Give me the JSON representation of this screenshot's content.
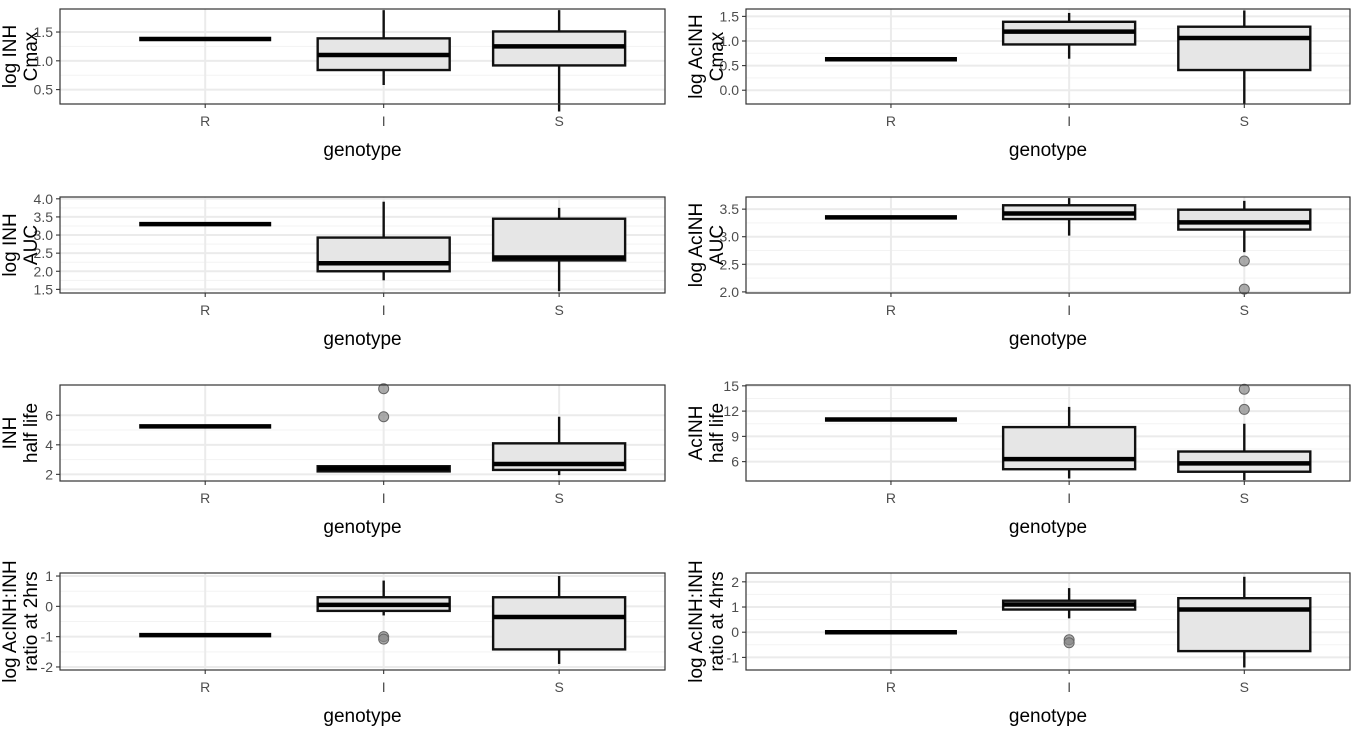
{
  "colors": {
    "box_fill": "#e6e6e6",
    "outline": "#111111",
    "outlier": "#888888",
    "grid": "#ebebeb"
  },
  "chart_data": [
    {
      "type": "box",
      "xlabel": "genotype",
      "ylabel_lines": [
        "log INH",
        "Cmax"
      ],
      "categories": [
        "R",
        "I",
        "S"
      ],
      "ylim": [
        0.25,
        1.9
      ],
      "yticks": [
        0.5,
        1.0,
        1.5
      ],
      "ytick_labels": [
        "0.5",
        "1.0",
        "1.5"
      ],
      "boxes": [
        {
          "category": "R",
          "min": 1.38,
          "q1": 1.38,
          "median": 1.38,
          "q3": 1.38,
          "max": 1.38,
          "outliers": []
        },
        {
          "category": "I",
          "min": 0.58,
          "q1": 0.84,
          "median": 1.1,
          "q3": 1.39,
          "max": 1.88,
          "outliers": []
        },
        {
          "category": "S",
          "min": 0.12,
          "q1": 0.92,
          "median": 1.25,
          "q3": 1.51,
          "max": 1.88,
          "outliers": []
        }
      ]
    },
    {
      "type": "box",
      "xlabel": "genotype",
      "ylabel_lines": [
        "log AcINH",
        "Cmax"
      ],
      "categories": [
        "R",
        "I",
        "S"
      ],
      "ylim": [
        -0.28,
        1.65
      ],
      "yticks": [
        0.0,
        0.5,
        1.0,
        1.5
      ],
      "ytick_labels": [
        "0.0",
        "0.5",
        "1.0",
        "1.5"
      ],
      "boxes": [
        {
          "category": "R",
          "min": 0.63,
          "q1": 0.63,
          "median": 0.63,
          "q3": 0.63,
          "max": 0.63,
          "outliers": []
        },
        {
          "category": "I",
          "min": 0.64,
          "q1": 0.93,
          "median": 1.19,
          "q3": 1.39,
          "max": 1.57,
          "outliers": []
        },
        {
          "category": "S",
          "min": -0.28,
          "q1": 0.41,
          "median": 1.06,
          "q3": 1.29,
          "max": 1.62,
          "outliers": []
        }
      ]
    },
    {
      "type": "box",
      "xlabel": "genotype",
      "ylabel_lines": [
        "log INH",
        "AUC"
      ],
      "categories": [
        "R",
        "I",
        "S"
      ],
      "ylim": [
        1.4,
        4.05
      ],
      "yticks": [
        1.5,
        2.0,
        2.5,
        3.0,
        3.5,
        4.0
      ],
      "ytick_labels": [
        "1.5",
        "2.0",
        "2.5",
        "3.0",
        "3.5",
        "4.0"
      ],
      "boxes": [
        {
          "category": "R",
          "min": 3.3,
          "q1": 3.3,
          "median": 3.3,
          "q3": 3.3,
          "max": 3.3,
          "outliers": []
        },
        {
          "category": "I",
          "min": 1.75,
          "q1": 2.0,
          "median": 2.22,
          "q3": 2.93,
          "max": 3.92,
          "outliers": []
        },
        {
          "category": "S",
          "min": 1.45,
          "q1": 2.3,
          "median": 2.38,
          "q3": 3.45,
          "max": 3.75,
          "outliers": []
        }
      ]
    },
    {
      "type": "box",
      "xlabel": "genotype",
      "ylabel_lines": [
        "log AcINH",
        "AUC"
      ],
      "categories": [
        "R",
        "I",
        "S"
      ],
      "ylim": [
        1.98,
        3.72
      ],
      "yticks": [
        2.0,
        2.5,
        3.0,
        3.5
      ],
      "ytick_labels": [
        "2.0",
        "2.5",
        "3.0",
        "3.5"
      ],
      "boxes": [
        {
          "category": "R",
          "min": 3.35,
          "q1": 3.35,
          "median": 3.35,
          "q3": 3.35,
          "max": 3.35,
          "outliers": []
        },
        {
          "category": "I",
          "min": 3.02,
          "q1": 3.32,
          "median": 3.42,
          "q3": 3.57,
          "max": 3.7,
          "outliers": []
        },
        {
          "category": "S",
          "min": 2.72,
          "q1": 3.13,
          "median": 3.26,
          "q3": 3.49,
          "max": 3.65,
          "outliers": [
            2.56,
            2.05
          ]
        }
      ]
    },
    {
      "type": "box",
      "xlabel": "genotype",
      "ylabel_lines": [
        "INH",
        "half life"
      ],
      "categories": [
        "R",
        "I",
        "S"
      ],
      "ylim": [
        1.55,
        8.05
      ],
      "yticks": [
        2,
        4,
        6
      ],
      "ytick_labels": [
        "2",
        "4",
        "6"
      ],
      "boxes": [
        {
          "category": "R",
          "min": 5.25,
          "q1": 5.25,
          "median": 5.25,
          "q3": 5.25,
          "max": 5.25,
          "outliers": []
        },
        {
          "category": "I",
          "min": 2.15,
          "q1": 2.2,
          "median": 2.4,
          "q3": 2.55,
          "max": 2.6,
          "outliers": [
            5.9,
            7.8
          ]
        },
        {
          "category": "S",
          "min": 1.95,
          "q1": 2.3,
          "median": 2.7,
          "q3": 4.1,
          "max": 5.9,
          "outliers": []
        }
      ]
    },
    {
      "type": "box",
      "xlabel": "genotype",
      "ylabel_lines": [
        "AcINH",
        "half life"
      ],
      "categories": [
        "R",
        "I",
        "S"
      ],
      "ylim": [
        3.7,
        15.1
      ],
      "yticks": [
        6,
        9,
        12,
        15
      ],
      "ytick_labels": [
        "6",
        "9",
        "12",
        "15"
      ],
      "boxes": [
        {
          "category": "R",
          "min": 11.0,
          "q1": 11.0,
          "median": 11.0,
          "q3": 11.0,
          "max": 11.0,
          "outliers": []
        },
        {
          "category": "I",
          "min": 4.0,
          "q1": 5.1,
          "median": 6.3,
          "q3": 10.1,
          "max": 12.5,
          "outliers": []
        },
        {
          "category": "S",
          "min": 3.8,
          "q1": 4.8,
          "median": 5.8,
          "q3": 7.2,
          "max": 10.5,
          "outliers": [
            12.2,
            14.6
          ]
        }
      ]
    },
    {
      "type": "box",
      "xlabel": "genotype",
      "ylabel_lines": [
        "log AcINH:INH",
        "ratio at 2hrs"
      ],
      "categories": [
        "R",
        "I",
        "S"
      ],
      "ylim": [
        -2.1,
        1.1
      ],
      "yticks": [
        -2,
        -1,
        0,
        1
      ],
      "ytick_labels": [
        "-2",
        "-1",
        "0",
        "1"
      ],
      "boxes": [
        {
          "category": "R",
          "min": -0.95,
          "q1": -0.95,
          "median": -0.95,
          "q3": -0.95,
          "max": -0.95,
          "outliers": []
        },
        {
          "category": "I",
          "min": -0.3,
          "q1": -0.15,
          "median": 0.05,
          "q3": 0.3,
          "max": 0.85,
          "outliers": [
            -1.0,
            -1.08
          ]
        },
        {
          "category": "S",
          "min": -1.9,
          "q1": -1.42,
          "median": -0.35,
          "q3": 0.3,
          "max": 1.0,
          "outliers": []
        }
      ]
    },
    {
      "type": "box",
      "xlabel": "genotype",
      "ylabel_lines": [
        "log AcINH:INH",
        "ratio at 4hrs"
      ],
      "categories": [
        "R",
        "I",
        "S"
      ],
      "ylim": [
        -1.5,
        2.35
      ],
      "yticks": [
        -1,
        0,
        1,
        2
      ],
      "ytick_labels": [
        "-1",
        "0",
        "1",
        "2"
      ],
      "boxes": [
        {
          "category": "R",
          "min": 0.0,
          "q1": 0.0,
          "median": 0.0,
          "q3": 0.0,
          "max": 0.0,
          "outliers": []
        },
        {
          "category": "I",
          "min": 0.55,
          "q1": 0.9,
          "median": 1.1,
          "q3": 1.25,
          "max": 1.75,
          "outliers": [
            -0.3,
            -0.42
          ]
        },
        {
          "category": "S",
          "min": -1.4,
          "q1": -0.75,
          "median": 0.9,
          "q3": 1.35,
          "max": 2.2,
          "outliers": []
        }
      ]
    }
  ]
}
